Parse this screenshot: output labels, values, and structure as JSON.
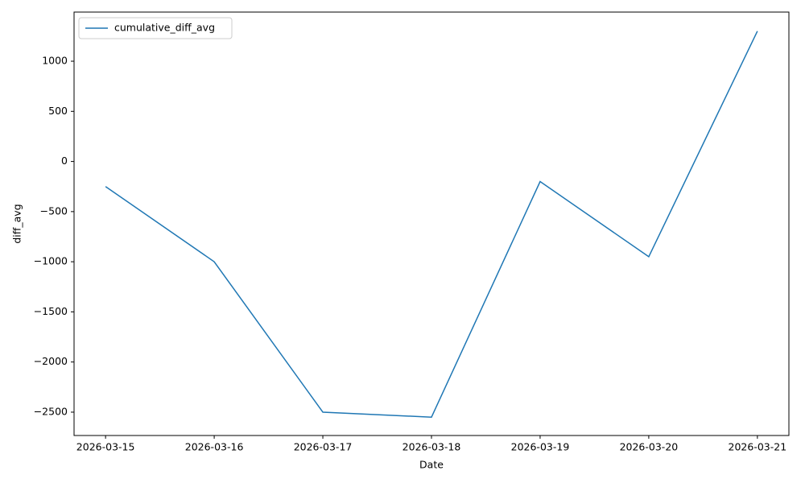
{
  "chart_data": {
    "type": "line",
    "x_label": "Date",
    "y_label": "diff_avg",
    "categories": [
      "2026-03-15",
      "2026-03-16",
      "2026-03-17",
      "2026-03-18",
      "2026-03-19",
      "2026-03-20",
      "2026-03-21"
    ],
    "series": [
      {
        "name": "cumulative_diff_avg",
        "color": "#1f77b4",
        "values": [
          -250,
          -1000,
          -2500,
          -2550,
          -200,
          -950,
          1300
        ]
      }
    ],
    "ylim": [
      -2733,
      1490
    ],
    "yticks": [
      {
        "value": -2500,
        "label": "−2500"
      },
      {
        "value": -2000,
        "label": "−2000"
      },
      {
        "value": -1500,
        "label": "−1500"
      },
      {
        "value": -1000,
        "label": "−1000"
      },
      {
        "value": -500,
        "label": "−500"
      },
      0,
      500,
      1000
    ],
    "legend": "upper left",
    "grid": false
  }
}
